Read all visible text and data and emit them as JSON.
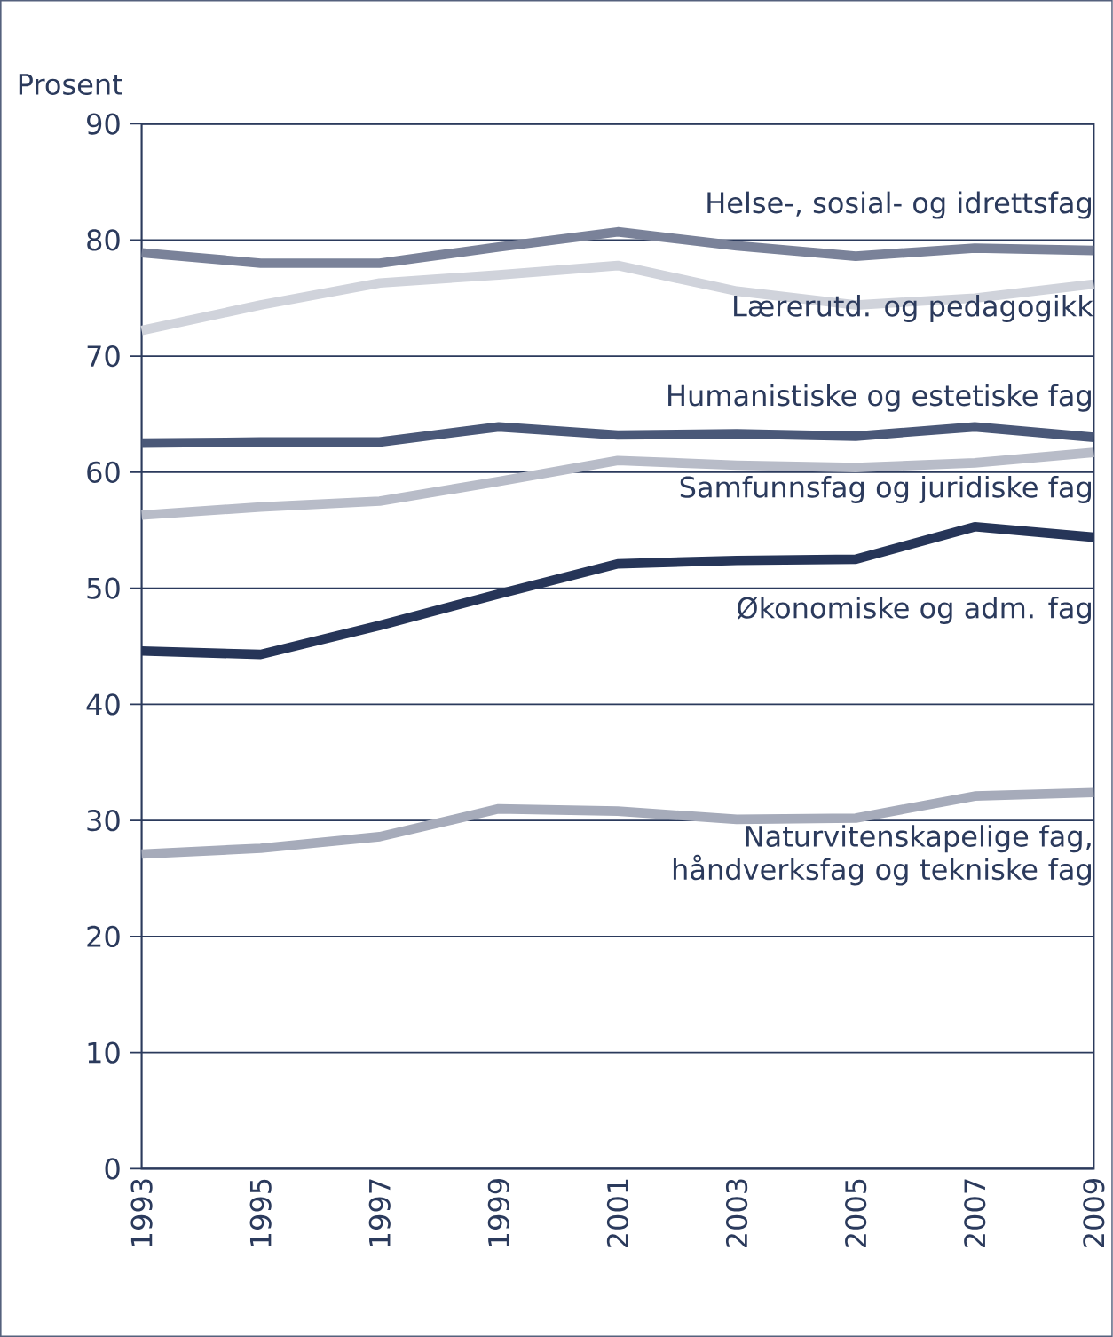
{
  "chart_data": {
    "type": "line",
    "ylabel": "Prosent",
    "x": [
      1993,
      1995,
      1997,
      1999,
      2001,
      2003,
      2005,
      2007,
      2009
    ],
    "xlim": [
      1993,
      2009
    ],
    "xticks": [
      1993,
      1995,
      1997,
      1999,
      2001,
      2003,
      2005,
      2007,
      2009
    ],
    "ylim": [
      0,
      90
    ],
    "yticks": [
      0,
      10,
      20,
      30,
      40,
      50,
      60,
      70,
      80,
      90
    ],
    "grid": "y",
    "marker": "none",
    "line_style": "solid",
    "series": [
      {
        "name": "Helse-, sosial- og idrettsfag",
        "color": "#7a8299",
        "values": [
          78.9,
          78,
          78,
          79.4,
          80.7,
          79.5,
          78.6,
          79.3,
          79.1
        ]
      },
      {
        "name": "Lærerutd. og pedagogikk",
        "color": "#d0d3db",
        "values": [
          72.2,
          74.4,
          76.3,
          77.0,
          77.8,
          75.6,
          74.4,
          75.0,
          76.2
        ]
      },
      {
        "name": "Humanistiske og estetiske fag",
        "color": "#4a5878",
        "values": [
          62.5,
          62.6,
          62.6,
          63.9,
          63.2,
          63.3,
          63.1,
          63.9,
          63.0
        ]
      },
      {
        "name": "Samfunnsfag og juridiske fag",
        "color": "#b8bcc8",
        "values": [
          56.3,
          57.0,
          57.5,
          59.2,
          61.0,
          60.6,
          60.4,
          60.8,
          61.7
        ]
      },
      {
        "name": "Økonomiske og adm. fag",
        "color": "#263558",
        "values": [
          44.6,
          44.3,
          46.8,
          49.5,
          52.1,
          52.4,
          52.5,
          55.3,
          54.4
        ]
      },
      {
        "name": "Naturvitenskapelige fag, håndverksfag og tekniske fag",
        "color": "#a6abba",
        "values": [
          27.1,
          27.6,
          28.6,
          31.0,
          30.8,
          30.1,
          30.2,
          32.1,
          32.4
        ]
      }
    ]
  }
}
